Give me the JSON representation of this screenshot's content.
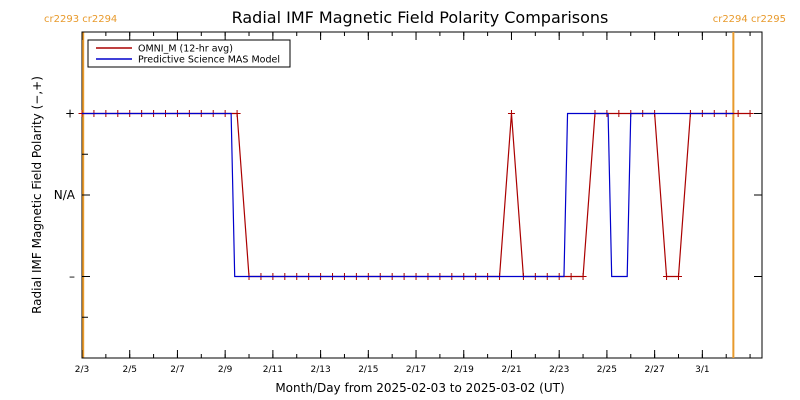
{
  "chart_data": {
    "type": "line",
    "title": "Radial IMF Magnetic Field Polarity Comparisons",
    "xlabel": "Month/Day from 2025-02-03 to 2025-03-02 (UT)",
    "ylabel": "Radial IMF Magnetic Field Polarity (−,+)",
    "x_tick_labels": [
      {
        "label": "2/3",
        "day": 0
      },
      {
        "label": "2/5",
        "day": 2
      },
      {
        "label": "2/7",
        "day": 4
      },
      {
        "label": "2/9",
        "day": 6
      },
      {
        "label": "2/11",
        "day": 8
      },
      {
        "label": "2/13",
        "day": 10
      },
      {
        "label": "2/15",
        "day": 12
      },
      {
        "label": "2/17",
        "day": 14
      },
      {
        "label": "2/19",
        "day": 16
      },
      {
        "label": "2/21",
        "day": 18
      },
      {
        "label": "2/23",
        "day": 20
      },
      {
        "label": "2/25",
        "day": 22
      },
      {
        "label": "2/27",
        "day": 24
      },
      {
        "label": "3/1",
        "day": 26
      }
    ],
    "xlim": [
      0,
      28.5
    ],
    "y_tick_labels": [
      {
        "label": "+",
        "value": 1
      },
      {
        "label": "N/A",
        "value": 0
      },
      {
        "label": "–",
        "value": -1
      }
    ],
    "ylim": [
      -2.0,
      2.0
    ],
    "carrington_markers": [
      {
        "day": 0.05,
        "label": "cr2293 cr2294",
        "position": "left"
      },
      {
        "day": 27.3,
        "label": "cr2294 cr2295",
        "position": "right"
      }
    ],
    "legend": {
      "placement": "top-left"
    },
    "series": [
      {
        "name": "OMNI_M (12-hr avg)",
        "color": "#aa0000",
        "markers": true,
        "step_days": 0.5,
        "values": [
          1,
          1,
          1,
          1,
          1,
          1,
          1,
          1,
          1,
          1,
          1,
          1,
          1,
          1,
          -1,
          -1,
          -1,
          -1,
          -1,
          -1,
          -1,
          -1,
          -1,
          -1,
          -1,
          -1,
          -1,
          -1,
          -1,
          -1,
          -1,
          -1,
          -1,
          -1,
          -1,
          -1,
          1,
          -1,
          -1,
          -1,
          -1,
          -1,
          -1,
          1,
          1,
          1,
          1,
          1,
          1,
          -1,
          -1,
          1,
          1,
          1,
          1,
          1,
          1
        ]
      },
      {
        "name": "Predictive Science MAS Model",
        "color": "#0000cc",
        "markers": false,
        "points": [
          [
            0,
            1
          ],
          [
            6.25,
            1
          ],
          [
            6.4,
            -1
          ],
          [
            20.2,
            -1
          ],
          [
            20.35,
            1
          ],
          [
            22.05,
            1
          ],
          [
            22.2,
            -1
          ],
          [
            22.85,
            -1
          ],
          [
            23.0,
            1
          ],
          [
            27.3,
            1
          ]
        ]
      }
    ]
  }
}
